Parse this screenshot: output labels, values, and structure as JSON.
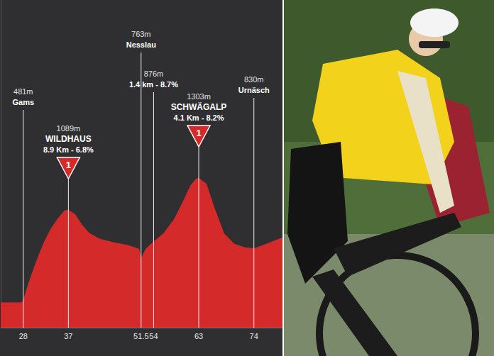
{
  "chart_data": {
    "type": "area",
    "x": [
      23.5,
      27.7,
      28,
      29.2,
      30.6,
      32,
      33.4,
      34.8,
      36.2,
      37,
      38.3,
      39.7,
      41.2,
      43.3,
      46.1,
      48.9,
      51,
      51.5,
      52.5,
      54,
      56,
      58.1,
      59.9,
      61.4,
      62.5,
      63,
      64.5,
      65.9,
      68,
      70.1,
      72.2,
      74,
      76.5,
      79.7
    ],
    "values": [
      467,
      467,
      481,
      609,
      742,
      861,
      956,
      1027,
      1084,
      1089,
      1061,
      989,
      932,
      894,
      870,
      852,
      828,
      763,
      830,
      876,
      932,
      1027,
      1146,
      1255,
      1298,
      1303,
      1265,
      1122,
      932,
      861,
      837,
      830,
      861,
      904
    ],
    "color": "#d42a2a",
    "xlim": [
      23.5,
      79.7
    ],
    "xticks": [
      28,
      37,
      51.5,
      54,
      63,
      74
    ],
    "ylim": [
      300,
      2500
    ],
    "tick_labels": "x",
    "grid": false,
    "annotations": [
      {
        "x": 28,
        "elevation": "481m",
        "name": "Gams"
      },
      {
        "x": 37,
        "elevation": "1089m",
        "name": "WILDHAUS",
        "climb": "8.9 Km - 6.8%",
        "category": "1"
      },
      {
        "x": 51.5,
        "elevation": "763m",
        "name": "Nesslau"
      },
      {
        "x": 54,
        "elevation": "876m",
        "climb": "1.4 km - 8.7%"
      },
      {
        "x": 63,
        "elevation": "1303m",
        "name": "SCHWÄGALP",
        "climb": "4.1 Km - 8.2%",
        "category": "1"
      },
      {
        "x": 74,
        "elevation": "830m",
        "name": "Urnäsch"
      }
    ]
  }
}
